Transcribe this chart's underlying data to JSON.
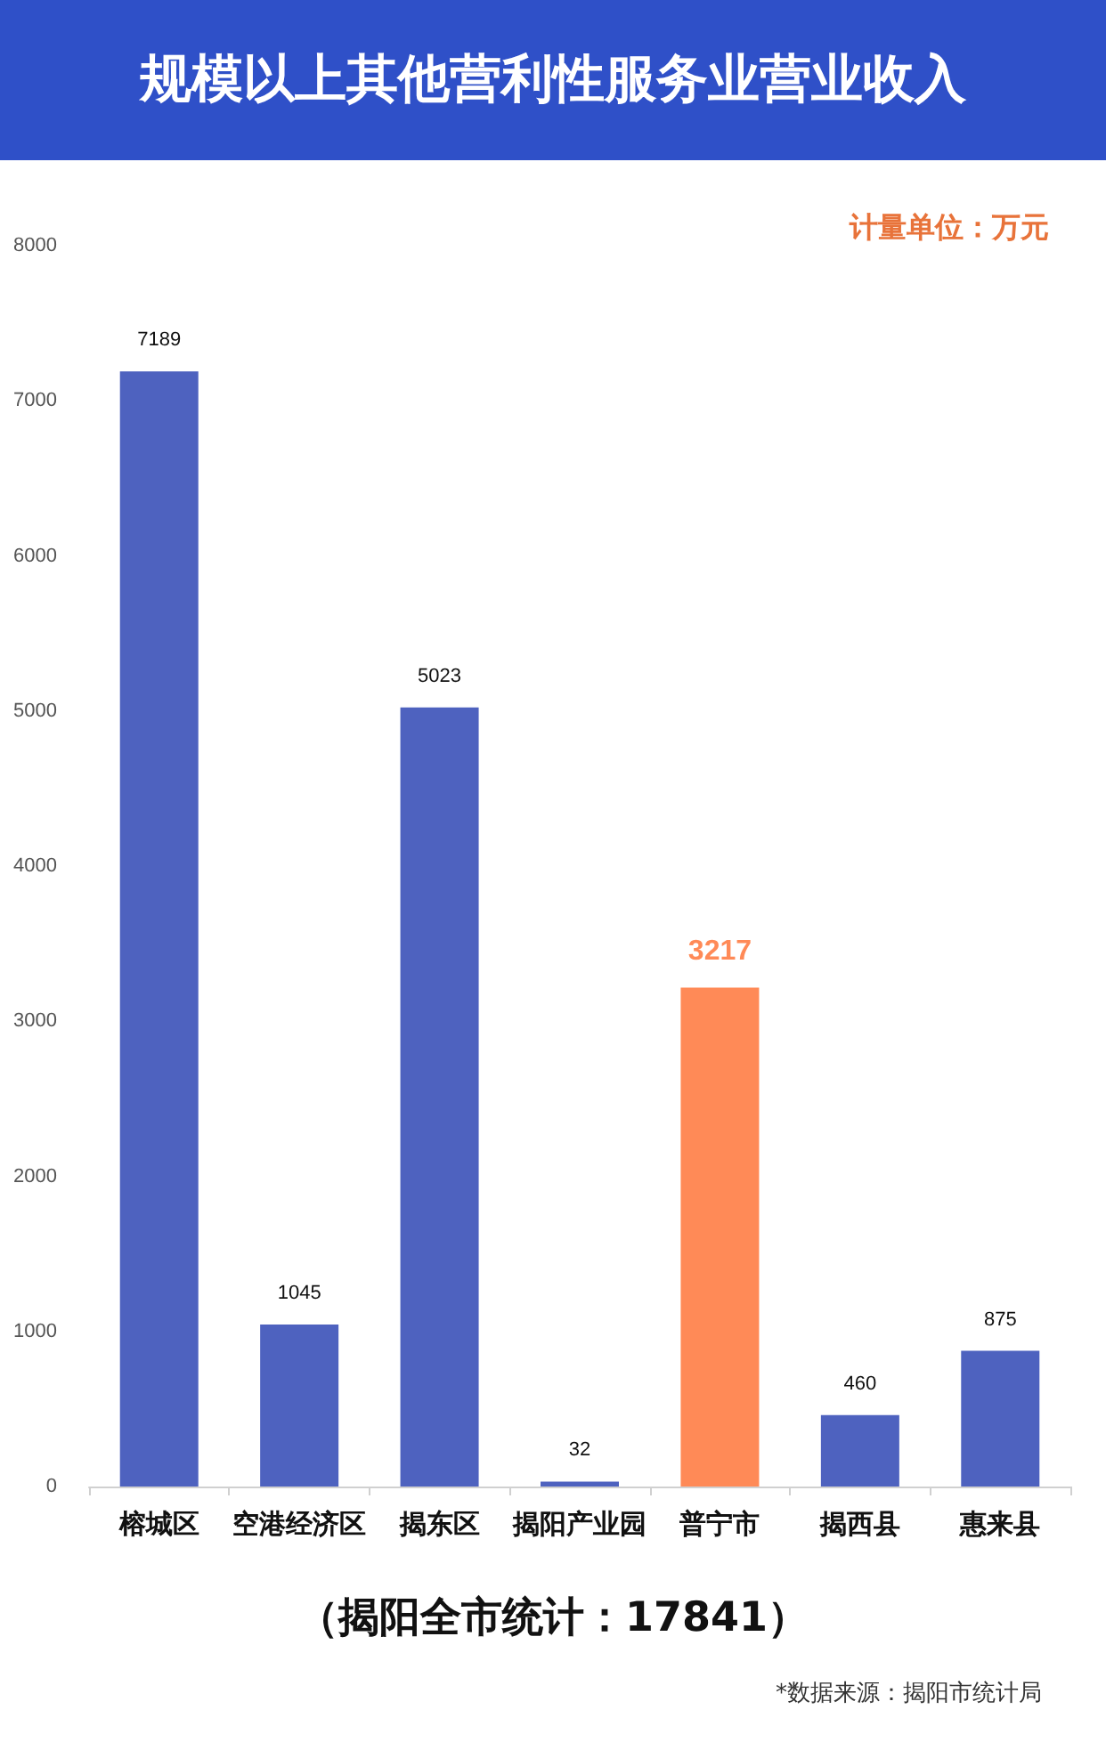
{
  "chart_data": {
    "type": "bar",
    "title": "规模以上其他营利性服务业营业收入",
    "categories": [
      "榕城区",
      "空港经济区",
      "揭东区",
      "揭阳产业园",
      "普宁市",
      "揭西县",
      "惠来县"
    ],
    "values": [
      7189,
      1045,
      5023,
      32,
      3217,
      460,
      875
    ],
    "colors": [
      "#4e62bf",
      "#4e62bf",
      "#4e62bf",
      "#4e62bf",
      "#ff8a57",
      "#4e62bf",
      "#4e62bf"
    ],
    "ylim": [
      0,
      8000
    ],
    "yticks": [
      0,
      1000,
      2000,
      3000,
      4000,
      5000,
      6000,
      7000,
      8000
    ],
    "grid": false,
    "data_labels": true,
    "annotations": [
      "计量单位：万元",
      "（揭阳全市统计：17841）",
      "*数据来源：揭阳市统计局"
    ]
  }
}
